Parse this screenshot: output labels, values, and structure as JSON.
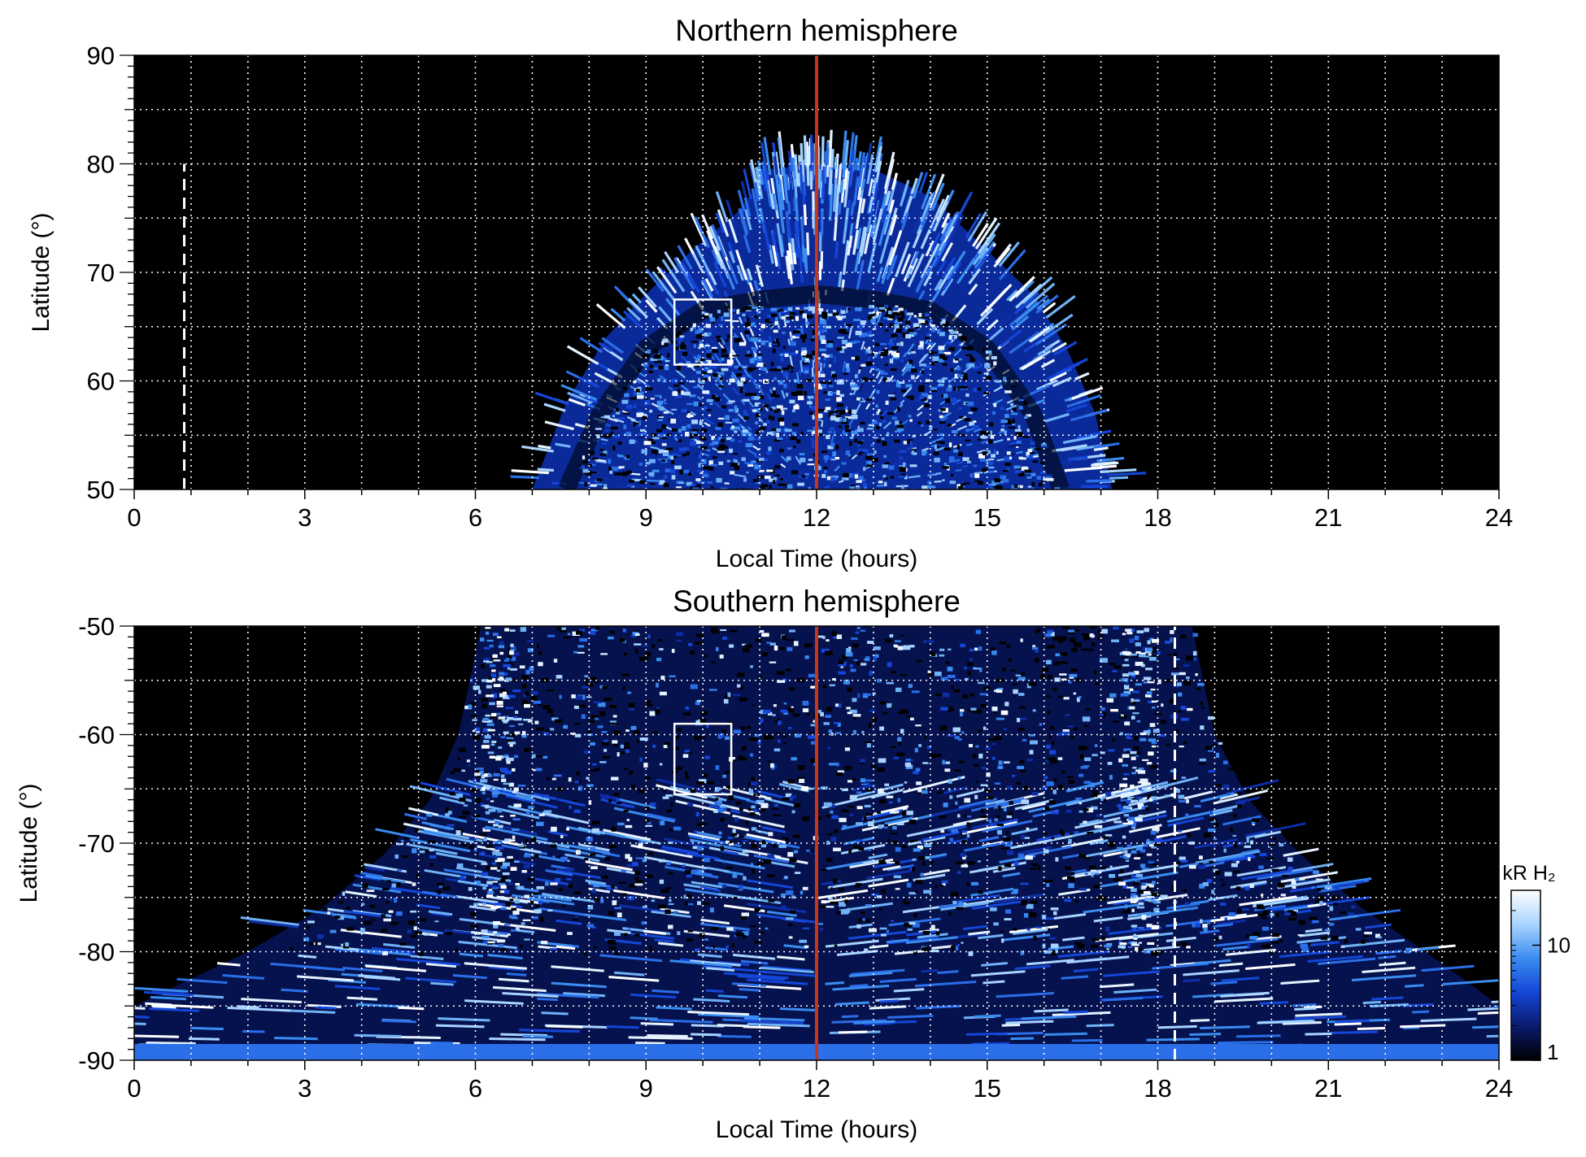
{
  "chart_data": [
    {
      "type": "heatmap",
      "panel": "north",
      "title": "Northern hemisphere",
      "xlabel": "Local Time (hours)",
      "ylabel": "Latitude (°)",
      "xlim": [
        0,
        24
      ],
      "ylim": [
        50,
        90
      ],
      "xticks": [
        0,
        3,
        6,
        9,
        12,
        15,
        18,
        21,
        24
      ],
      "xtick_labels": [
        "0",
        "3",
        "6",
        "9",
        "12",
        "15",
        "18",
        "21",
        "24"
      ],
      "yticks": [
        50,
        60,
        70,
        80,
        90
      ],
      "ytick_labels": [
        "50",
        "60",
        "70",
        "80",
        "90"
      ],
      "grid": true,
      "x_grid_step": 1,
      "y_grid_step": 5,
      "background": "#000000",
      "emission_region": {
        "description_points": [
          [
            7.0,
            50
          ],
          [
            7.6,
            58
          ],
          [
            8.3,
            64
          ],
          [
            9.0,
            68
          ],
          [
            9.8,
            72
          ],
          [
            10.6,
            75.5
          ],
          [
            11.2,
            79.5
          ],
          [
            12.0,
            80
          ],
          [
            13.0,
            79.5
          ],
          [
            14.0,
            77
          ],
          [
            15.0,
            72
          ],
          [
            15.8,
            68
          ],
          [
            16.4,
            63
          ],
          [
            16.9,
            57
          ],
          [
            17.2,
            50
          ]
        ],
        "dark_ring": [
          [
            7.6,
            50
          ],
          [
            8.2,
            57
          ],
          [
            9.0,
            63
          ],
          [
            10.0,
            66.5
          ],
          [
            11.0,
            67.5
          ],
          [
            12.0,
            68
          ],
          [
            13.0,
            67.5
          ],
          [
            14.0,
            66.5
          ],
          [
            15.0,
            63
          ],
          [
            15.8,
            57
          ],
          [
            16.3,
            50
          ]
        ]
      },
      "noon_line_x": 12,
      "noon_line_color": "#c8361a",
      "dashed_line_x": 0.88,
      "dashed_line_ylim": [
        50,
        80
      ],
      "box": {
        "x": [
          9.5,
          10.5
        ],
        "y": [
          61.5,
          67.5
        ]
      }
    },
    {
      "type": "heatmap",
      "panel": "south",
      "title": "Southern hemisphere",
      "xlabel": "Local Time (hours)",
      "ylabel": "Latitude (°)",
      "xlim": [
        0,
        24
      ],
      "ylim": [
        -90,
        -50
      ],
      "xticks": [
        0,
        3,
        6,
        9,
        12,
        15,
        18,
        21,
        24
      ],
      "xtick_labels": [
        "0",
        "3",
        "6",
        "9",
        "12",
        "15",
        "18",
        "21",
        "24"
      ],
      "yticks": [
        -90,
        -80,
        -70,
        -60,
        -50
      ],
      "ytick_labels": [
        "-90",
        "-80",
        "-70",
        "-60",
        "-50"
      ],
      "grid": true,
      "x_grid_step": 1,
      "y_grid_step": 5,
      "background": "#000000",
      "emission_region": {
        "left_edge": [
          [
            6.1,
            -50
          ],
          [
            5.7,
            -60
          ],
          [
            5.2,
            -66
          ],
          [
            4.4,
            -71
          ],
          [
            3.3,
            -76
          ],
          [
            2.0,
            -80
          ],
          [
            0.8,
            -83
          ],
          [
            0,
            -85
          ]
        ],
        "right_edge": [
          [
            18.6,
            -50
          ],
          [
            19.0,
            -60
          ],
          [
            19.6,
            -66
          ],
          [
            20.5,
            -71
          ],
          [
            21.6,
            -76
          ],
          [
            22.7,
            -80
          ],
          [
            23.5,
            -83
          ],
          [
            24,
            -85
          ]
        ],
        "bright_arcs": [
          {
            "x": 6.4,
            "ylim": [
              -80,
              -50
            ]
          },
          {
            "x": 17.6,
            "ylim": [
              -80,
              -50
            ]
          }
        ]
      },
      "noon_line_x": 12,
      "noon_line_color": "#c8361a",
      "dashed_line_x": 18.3,
      "dashed_line_ylim": [
        -90,
        -50
      ],
      "box": {
        "x": [
          9.5,
          10.5
        ],
        "y": [
          -65.5,
          -59
        ]
      }
    }
  ],
  "colorbar": {
    "label": "kR H₂",
    "scale": "log",
    "range": [
      1,
      30
    ],
    "ticks": [
      1,
      10
    ],
    "tick_labels": [
      "1",
      "10"
    ],
    "colors": [
      "#000000",
      "#0a1a6e",
      "#1446d8",
      "#3a8cf0",
      "#a8d4ff",
      "#ffffff"
    ]
  }
}
